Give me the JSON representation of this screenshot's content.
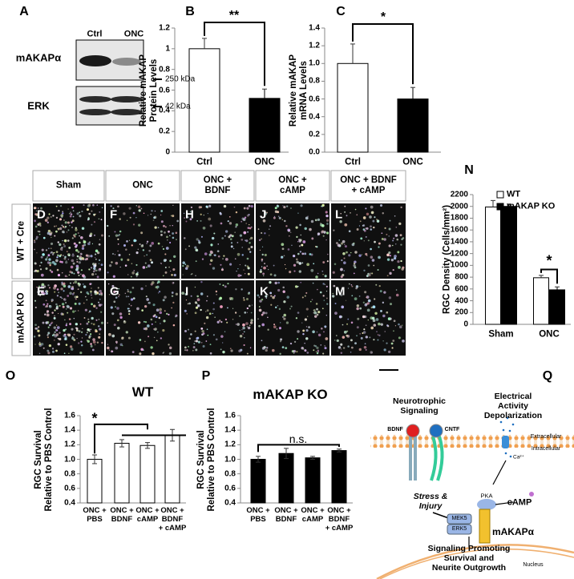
{
  "panel_letters": [
    "A",
    "B",
    "C",
    "N",
    "O",
    "P",
    "Q"
  ],
  "blot": {
    "columns": [
      "Ctrl",
      "ONC"
    ],
    "rows": [
      "mAKAPα",
      "ERK"
    ],
    "markers": [
      "250 kDa",
      "42 kDa"
    ]
  },
  "chart_data": [
    {
      "type": "bar",
      "ylabel": "Relative mAKAP\nProtein Levels",
      "categories": [
        "Ctrl",
        "ONC"
      ],
      "values": [
        1,
        0.52
      ],
      "errors": [
        0.1,
        0.09
      ],
      "colors": [
        "#ffffff",
        "#000000"
      ],
      "ylim": [
        0,
        1.2
      ],
      "yticks": [
        0,
        0.2,
        0.4,
        0.6,
        0.8,
        1,
        1.2
      ],
      "annotation": "**",
      "grid": false
    },
    {
      "type": "bar",
      "ylabel": "Relative mAKAP\nmRNA Levels",
      "categories": [
        "Ctrl",
        "ONC"
      ],
      "values": [
        1.0,
        0.6
      ],
      "errors": [
        0.22,
        0.13
      ],
      "colors": [
        "#ffffff",
        "#000000"
      ],
      "ylim": [
        0,
        1.4
      ],
      "yticks": [
        {
          "value": 0,
          "label": "0.0"
        },
        0.2,
        0.4,
        0.6,
        0.8,
        {
          "value": 1,
          "label": "1.0"
        },
        1.2,
        1.4
      ],
      "annotation": "*",
      "grid": false
    },
    {
      "type": "grouped_bar",
      "ylabel": "RGC Density (Cells/mm²)",
      "categories": [
        "Sham",
        "ONC"
      ],
      "series": [
        {
          "name": "WT",
          "color": "#ffffff",
          "values": [
            1990,
            790
          ],
          "errors": [
            110,
            40
          ]
        },
        {
          "name": "mAKAP KO",
          "color": "#000000",
          "values": [
            2000,
            585
          ],
          "errors": [
            40,
            50
          ]
        }
      ],
      "ylim": [
        0,
        2200
      ],
      "yticks": [
        0,
        200,
        400,
        600,
        800,
        1000,
        1200,
        1400,
        1600,
        1800,
        2000,
        2200
      ],
      "annotation": "*",
      "legend": "upper right",
      "grid": false
    },
    {
      "type": "bar",
      "title": "WT",
      "ylabel": "RGC Survival\nRelative to PBS Control",
      "categories": [
        "ONC +\nPBS",
        "ONC +\nBDNF",
        "ONC +\ncAMP",
        "ONC +\nBDNF\n+ cAMP"
      ],
      "values": [
        1.0,
        1.22,
        1.19,
        1.33
      ],
      "errors": [
        0.06,
        0.05,
        0.04,
        0.08
      ],
      "colors": [
        "#ffffff",
        "#ffffff",
        "#ffffff",
        "#ffffff"
      ],
      "ylim": [
        0.4,
        1.6
      ],
      "yticks": [
        0.4,
        0.6,
        0.8,
        {
          "value": 1,
          "label": "1.0"
        },
        1.2,
        1.4,
        1.6
      ],
      "annotation": "*",
      "grid": false
    },
    {
      "type": "bar",
      "title": "mAKAP KO",
      "ylabel": "RGC Survival\nRelative to PBS Control",
      "categories": [
        "ONC +\nPBS",
        "ONC +\nBDNF",
        "ONC +\ncAMP",
        "ONC +\nBDNF\n+ cAMP"
      ],
      "values": [
        1.0,
        1.08,
        1.02,
        1.12
      ],
      "errors": [
        0.04,
        0.07,
        0.02,
        0.02
      ],
      "colors": [
        "#000000",
        "#000000",
        "#000000",
        "#000000"
      ],
      "ylim": [
        0.4,
        1.6
      ],
      "yticks": [
        0.4,
        0.6,
        0.8,
        {
          "value": 1,
          "label": "1.0"
        },
        1.2,
        1.4,
        1.6
      ],
      "annotation": "n.s.",
      "grid": false
    }
  ],
  "micrographs": {
    "columns": [
      "Sham",
      "ONC",
      "ONC +\nBDNF",
      "ONC +\ncAMP",
      "ONC + BDNF\n+ cAMP"
    ],
    "rows": [
      "WT + Cre",
      "mAKAP KO"
    ],
    "letters": [
      [
        "D",
        "F",
        "H",
        "J",
        "L"
      ],
      [
        "E",
        "G",
        "I",
        "K",
        "M"
      ]
    ]
  },
  "diagram": {
    "neurotrophic": "Neurotrophic\nSignaling",
    "electrical": "Electrical Activity\nDepolarization",
    "bdnf": "BDNF",
    "cntf": "CNTF",
    "extracellular": "Extracellular",
    "intracellular": "Intracellular",
    "calcium": "Ca²⁺",
    "pka": "PKA",
    "camp": "cAMP",
    "stress": "Stress &\nInjury",
    "mek5": "MEK5",
    "erk5": "ERK5",
    "makap": "mAKAPα",
    "outcome": "Signaling Promoting\nSurvival and\nNeurite Outgrowth",
    "nucleus": "Nucleus"
  }
}
